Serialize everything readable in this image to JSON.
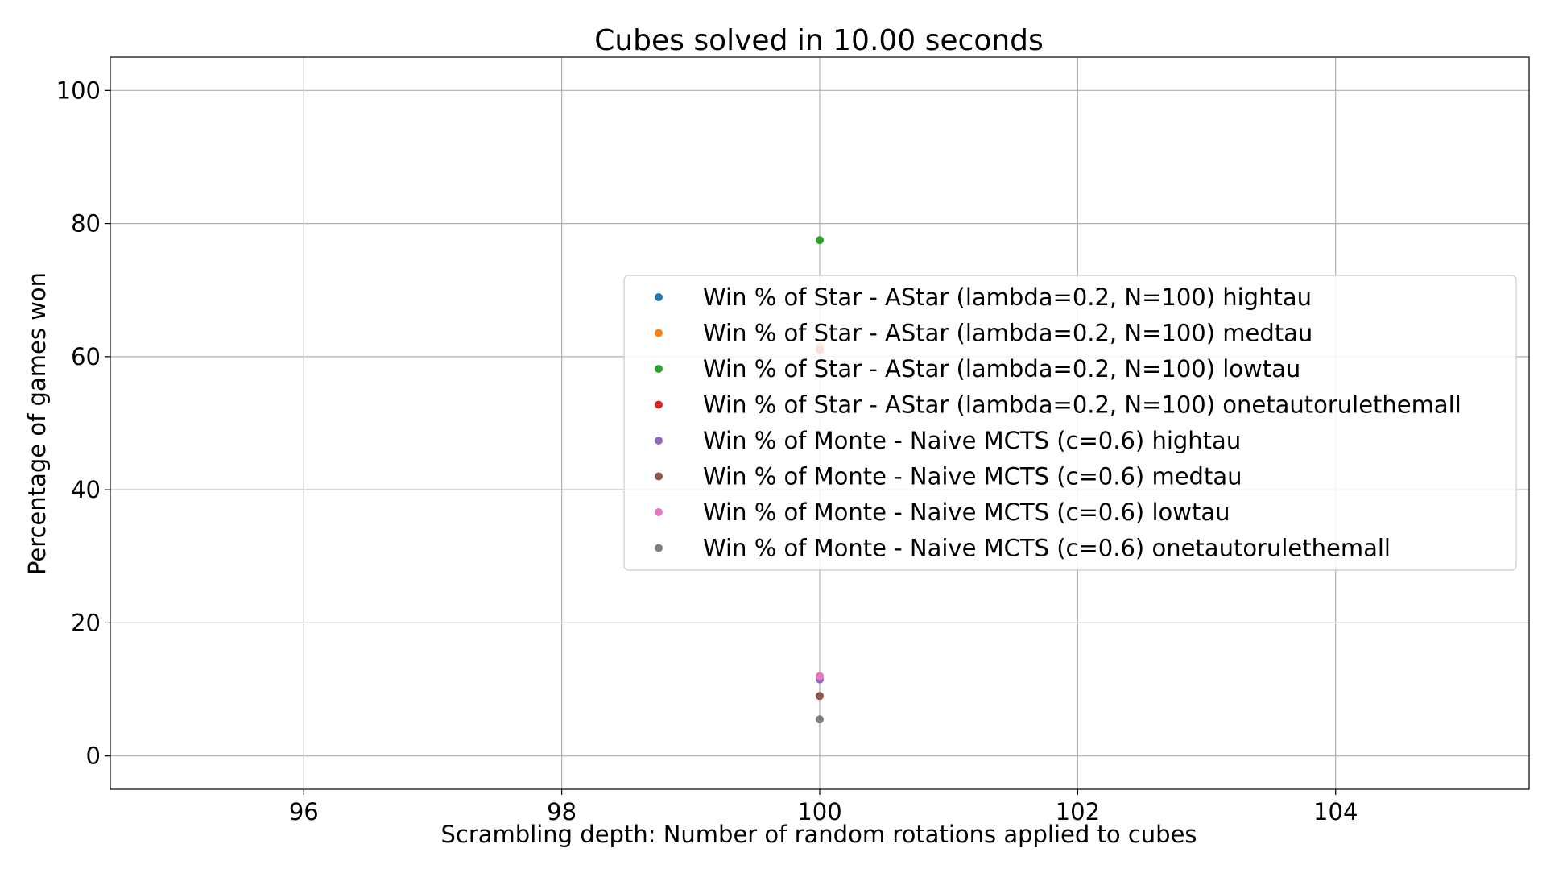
{
  "chart_data": {
    "type": "scatter",
    "title": "Cubes solved in 10.00 seconds",
    "xlabel": "Scrambling depth: Number of random rotations applied to cubes",
    "ylabel": "Percentage of games won",
    "xlim": [
      94.5,
      105.5
    ],
    "ylim": [
      -5,
      105
    ],
    "xticks": [
      96,
      98,
      100,
      102,
      104
    ],
    "yticks": [
      0,
      20,
      40,
      60,
      80,
      100
    ],
    "grid": true,
    "legend_position": "center-right",
    "series": [
      {
        "name": "Win % of Star - AStar (lambda=0.2, N=100) hightau",
        "color": "#1f77b4",
        "x": [
          100
        ],
        "y": [
          61
        ]
      },
      {
        "name": "Win % of Star - AStar (lambda=0.2, N=100) medtau",
        "color": "#ff7f0e",
        "x": [
          100
        ],
        "y": [
          61.5
        ]
      },
      {
        "name": "Win % of Star - AStar (lambda=0.2, N=100) lowtau",
        "color": "#2ca02c",
        "x": [
          100
        ],
        "y": [
          77.5
        ]
      },
      {
        "name": "Win % of Star - AStar (lambda=0.2, N=100) onetautorulethemall",
        "color": "#d62728",
        "x": [
          100
        ],
        "y": [
          61
        ]
      },
      {
        "name": "Win % of Monte - Naive MCTS (c=0.6) hightau",
        "color": "#9467bd",
        "x": [
          100
        ],
        "y": [
          11.5
        ]
      },
      {
        "name": "Win % of Monte - Naive MCTS (c=0.6) medtau",
        "color": "#8c564b",
        "x": [
          100
        ],
        "y": [
          9
        ]
      },
      {
        "name": "Win % of Monte - Naive MCTS (c=0.6) lowtau",
        "color": "#e377c2",
        "x": [
          100
        ],
        "y": [
          12
        ]
      },
      {
        "name": "Win % of Monte - Naive MCTS (c=0.6) onetautorulethemall",
        "color": "#7f7f7f",
        "x": [
          100
        ],
        "y": [
          5.5
        ]
      }
    ]
  }
}
